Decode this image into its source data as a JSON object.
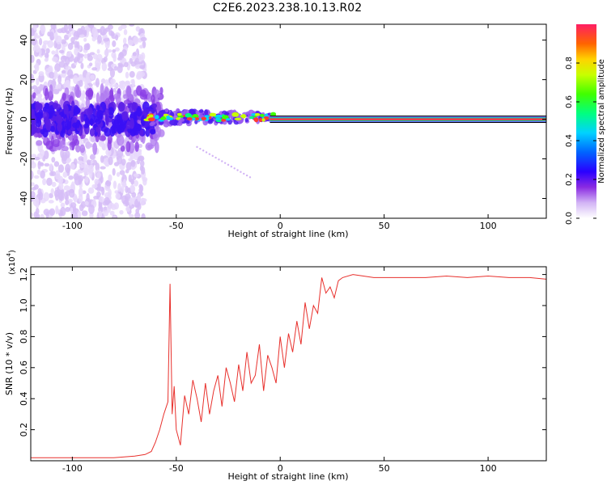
{
  "title": "C2E6.2023.238.10.13.R02",
  "chart_data": [
    {
      "type": "heatmap",
      "xlabel": "Height of straight line (km)",
      "ylabel": "Frequency (Hz)",
      "xlim": [
        -120,
        128
      ],
      "ylim": [
        -50,
        48
      ],
      "xticks": [
        -100,
        -50,
        0,
        50,
        100
      ],
      "yticks": [
        -40,
        -20,
        0,
        20,
        40
      ],
      "colorbar": {
        "label": "Normalized spectral amplitude",
        "range": [
          0.0,
          1.0
        ],
        "ticks": [
          "0.0",
          "0.2",
          "0.4",
          "0.6",
          "0.8"
        ]
      },
      "features": {
        "noise_region_x": [
          -120,
          -65
        ],
        "narrow_line_x": [
          -5,
          128
        ],
        "line_frequency": 0
      }
    },
    {
      "type": "line",
      "xlabel": "Height of straight line (km)",
      "ylabel": "SNR (10 * v/v)",
      "yscale_label": "(x10",
      "yscale_exp": "4",
      "xlim": [
        -120,
        128
      ],
      "ylim": [
        0,
        1.25
      ],
      "xticks": [
        -100,
        -50,
        0,
        50,
        100
      ],
      "yticks": [
        "0.2",
        "0.4",
        "0.6",
        "0.8",
        "1.0",
        "1.2"
      ],
      "color": "#e8302c",
      "series": [
        {
          "x": [
            -120,
            -100,
            -80,
            -70,
            -65,
            -62,
            -60,
            -58,
            -56,
            -54,
            -53,
            -52,
            -51,
            -50,
            -48,
            -46,
            -44,
            -42,
            -40,
            -38,
            -36,
            -34,
            -32,
            -30,
            -28,
            -26,
            -24,
            -22,
            -20,
            -18,
            -16,
            -14,
            -12,
            -10,
            -8,
            -6,
            -4,
            -2,
            0,
            2,
            4,
            6,
            8,
            10,
            12,
            14,
            16,
            18,
            20,
            22,
            24,
            26,
            28,
            30,
            35,
            40,
            45,
            50,
            60,
            70,
            80,
            90,
            100,
            110,
            120,
            128
          ],
          "values": [
            0.02,
            0.02,
            0.02,
            0.03,
            0.04,
            0.06,
            0.12,
            0.2,
            0.3,
            0.38,
            1.14,
            0.3,
            0.48,
            0.2,
            0.1,
            0.42,
            0.3,
            0.52,
            0.4,
            0.25,
            0.5,
            0.3,
            0.45,
            0.55,
            0.35,
            0.6,
            0.5,
            0.38,
            0.62,
            0.45,
            0.7,
            0.5,
            0.55,
            0.75,
            0.45,
            0.68,
            0.6,
            0.5,
            0.8,
            0.6,
            0.82,
            0.7,
            0.9,
            0.75,
            1.02,
            0.85,
            1.0,
            0.95,
            1.18,
            1.08,
            1.12,
            1.05,
            1.16,
            1.18,
            1.2,
            1.19,
            1.18,
            1.18,
            1.18,
            1.18,
            1.19,
            1.18,
            1.19,
            1.18,
            1.18,
            1.17
          ]
        }
      ]
    }
  ]
}
